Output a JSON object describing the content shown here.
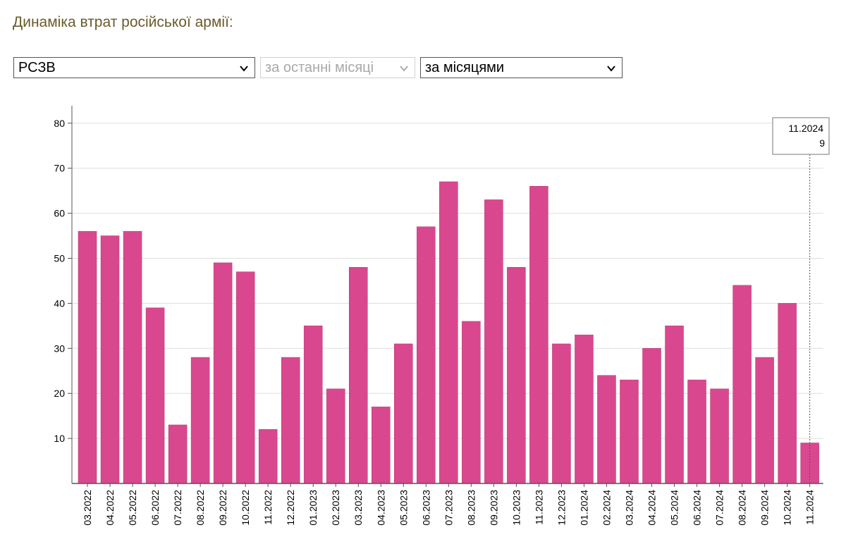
{
  "header": {
    "title": "Динаміка втрат російської армії:"
  },
  "controls": {
    "metric": {
      "value": "РСЗВ"
    },
    "period": {
      "value": "за останні місяці",
      "disabled": true
    },
    "grouping": {
      "value": "за місяцями"
    }
  },
  "tooltip": {
    "label": "11.2024",
    "value": "9"
  },
  "colors": {
    "bar": "#d9488f",
    "bar_stroke": "#b8326f",
    "grid": "#dddddd",
    "axis": "#555555"
  },
  "chart_data": {
    "type": "bar",
    "title": "Динаміка втрат російської армії:",
    "xlabel": "",
    "ylabel": "",
    "ylim": [
      0,
      84
    ],
    "yticks": [
      10,
      20,
      30,
      40,
      50,
      60,
      70,
      80
    ],
    "grid": true,
    "categories": [
      "03.2022",
      "04.2022",
      "05.2022",
      "06.2022",
      "07.2022",
      "08.2022",
      "09.2022",
      "10.2022",
      "11.2022",
      "12.2022",
      "01.2023",
      "02.2023",
      "03.2023",
      "04.2023",
      "05.2023",
      "06.2023",
      "07.2023",
      "08.2023",
      "09.2023",
      "10.2023",
      "11.2023",
      "12.2023",
      "01.2024",
      "02.2024",
      "03.2024",
      "04.2024",
      "05.2024",
      "06.2024",
      "07.2024",
      "08.2024",
      "09.2024",
      "10.2024",
      "11.2024"
    ],
    "values": [
      56,
      55,
      56,
      39,
      13,
      28,
      49,
      47,
      12,
      28,
      35,
      21,
      48,
      17,
      31,
      57,
      67,
      36,
      63,
      48,
      66,
      31,
      33,
      24,
      23,
      30,
      35,
      23,
      21,
      44,
      28,
      40,
      9
    ]
  }
}
